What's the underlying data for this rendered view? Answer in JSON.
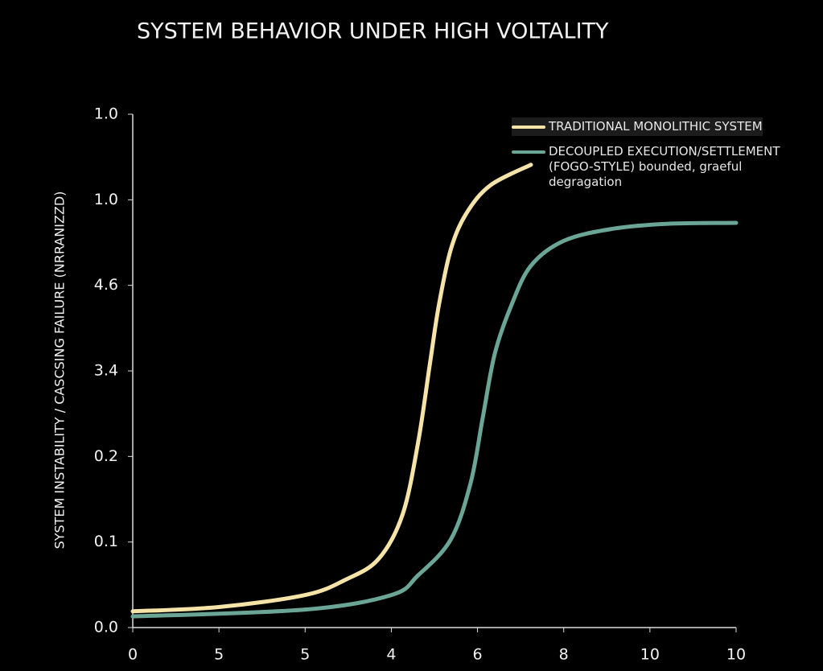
{
  "chart_data": {
    "type": "line",
    "title": "SYSTEM BEHAVIOR UNDER HIGH VOLTALITY",
    "ylabel": "SYSTEM INSTABILITY / CASCSING FAILURE (NRRANIZZD)",
    "xlim": [
      0,
      7
    ],
    "xticks": [
      0,
      {
        "value": 1,
        "label": "5"
      },
      {
        "value": 2,
        "label": "5"
      },
      {
        "value": 3,
        "label": "4"
      },
      {
        "value": 4,
        "label": "6"
      },
      {
        "value": 5,
        "label": "8"
      },
      {
        "value": 6,
        "label": "10"
      },
      {
        "value": 7,
        "label": "10"
      }
    ],
    "ylim": [
      0,
      6
    ],
    "yticks": [
      {
        "value": 0,
        "label": "0.0"
      },
      {
        "value": 1,
        "label": "0.1"
      },
      {
        "value": 2,
        "label": "0.2"
      },
      {
        "value": 3,
        "label": "3.4"
      },
      {
        "value": 4,
        "label": "4.6"
      },
      {
        "value": 5,
        "label": "1.0"
      },
      {
        "value": 6,
        "label": "1.0"
      }
    ],
    "series": [
      {
        "name": "TRADITIONAL MONOLITHIC SYSTEM",
        "color": "#f5e3a8",
        "x": [
          0,
          1.0,
          2.0,
          2.47,
          2.85,
          3.13,
          3.31,
          3.45,
          3.55,
          3.69,
          3.87,
          4.15,
          4.62
        ],
        "values": [
          0.19,
          0.24,
          0.38,
          0.56,
          0.8,
          1.32,
          2.16,
          3.1,
          3.76,
          4.42,
          4.84,
          5.17,
          5.41
        ]
      },
      {
        "name": "DECOUPLED EXECUTION/SETTLEMENT (FOGO-STYLE) bounded, graeful degragation",
        "color": "#6aa595",
        "x": [
          0,
          2.0,
          3.0,
          3.31,
          3.69,
          3.92,
          4.06,
          4.2,
          4.39,
          4.62,
          5.0,
          5.56,
          6.21,
          7.0
        ],
        "values": [
          0.13,
          0.21,
          0.38,
          0.61,
          1.03,
          1.69,
          2.45,
          3.2,
          3.76,
          4.23,
          4.52,
          4.66,
          4.72,
          4.73
        ]
      }
    ]
  }
}
